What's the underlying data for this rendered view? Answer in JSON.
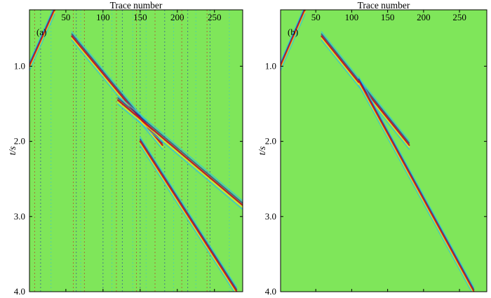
{
  "colors": {
    "background_field": "#7fe65a",
    "positive_peak": "#c8121a",
    "positive_mid": "#f5e11e",
    "negative_peak": "#1a2aa8",
    "negative_mid": "#2ec0e0"
  },
  "chart_data": [
    {
      "type": "heatmap",
      "panel_label": "(a)",
      "xlabel": "Trace number",
      "ylabel": "t/s",
      "x_tick_labels": [
        "50",
        "100",
        "150",
        "200",
        "250"
      ],
      "x_ticks": [
        50,
        100,
        150,
        200,
        250
      ],
      "y_tick_labels": [
        "1.0",
        "2.0",
        "3.0",
        "4.0"
      ],
      "y_ticks": [
        1.0,
        2.0,
        3.0,
        4.0
      ],
      "xlim": [
        1,
        288
      ],
      "ylim": [
        0.25,
        4.0
      ],
      "events": [
        {
          "x": [
            1,
            35
          ],
          "t": [
            1.0,
            0.25
          ]
        },
        {
          "x": [
            58,
            180
          ],
          "t": [
            0.6,
            2.05
          ]
        },
        {
          "x": [
            120,
            288
          ],
          "t": [
            1.45,
            2.85
          ]
        },
        {
          "x": [
            150,
            280
          ],
          "t": [
            2.0,
            4.0
          ]
        }
      ],
      "noisy_traces": [
        8,
        16,
        30,
        60,
        64,
        70,
        75,
        100,
        112,
        118,
        126,
        140,
        145,
        150,
        158,
        170,
        183,
        195,
        206,
        214,
        225,
        240,
        244,
        270
      ]
    },
    {
      "type": "heatmap",
      "panel_label": "(b)",
      "xlabel": "Trace number",
      "ylabel": "t/s",
      "x_tick_labels": [
        "50",
        "100",
        "150",
        "200",
        "250"
      ],
      "x_ticks": [
        50,
        100,
        150,
        200,
        250
      ],
      "y_tick_labels": [
        "1.0",
        "2.0",
        "3.0",
        "4.0"
      ],
      "y_ticks": [
        1.0,
        2.0,
        3.0,
        4.0
      ],
      "xlim": [
        1,
        288
      ],
      "ylim": [
        0.25,
        4.0
      ],
      "events": [
        {
          "x": [
            1,
            35
          ],
          "t": [
            1.0,
            0.25
          ]
        },
        {
          "x": [
            58,
            180
          ],
          "t": [
            0.6,
            2.05
          ]
        },
        {
          "x": [
            110,
            270
          ],
          "t": [
            1.2,
            4.0
          ]
        }
      ]
    }
  ]
}
